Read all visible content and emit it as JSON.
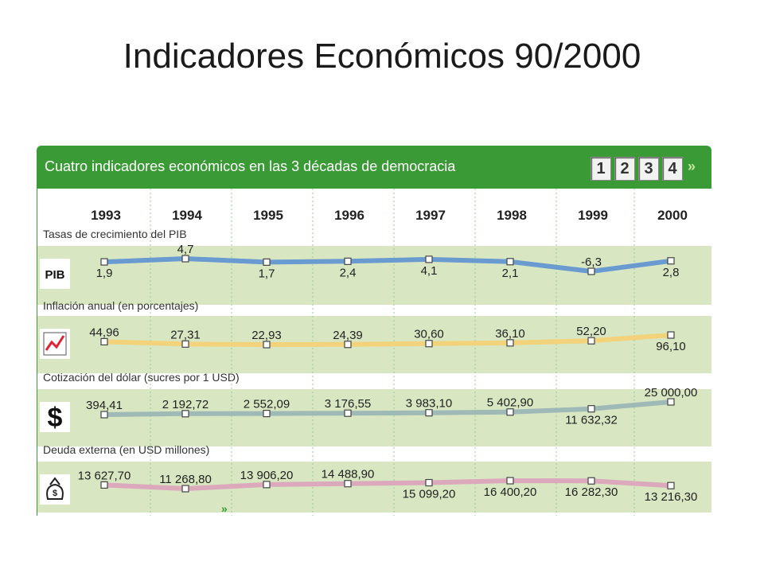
{
  "slide_title": "Indicadores Económicos 90/2000",
  "widget": {
    "title": "Cuatro indicadores económicos en las 3 décadas de democracia",
    "pages": [
      "1",
      "2",
      "3",
      "4"
    ],
    "next_arrow": "»",
    "bottom_arrow": "»"
  },
  "colors": {
    "header_green": "#3a9a36",
    "row_band": "#d8e6c2",
    "pib_line": "#6a9bd0",
    "inflation_line": "#f2d27a",
    "dollar_line": "#9fb9b6",
    "debt_line": "#dba8bc"
  },
  "chart_data": {
    "type": "line",
    "years": [
      "1993",
      "1994",
      "1995",
      "1996",
      "1997",
      "1998",
      "1999",
      "2000"
    ],
    "panels": [
      {
        "label": "Tasas de crecimiento del PIB",
        "icon": "pib-icon",
        "icon_text": "PIB",
        "values": [
          1.9,
          4.7,
          1.7,
          2.4,
          4.1,
          2.1,
          -6.3,
          2.8
        ],
        "labels": [
          "1,9",
          "4,7",
          "1,7",
          "2,4",
          "4,1",
          "2,1",
          "-6,3",
          "2,8"
        ]
      },
      {
        "label": "Inflación anual (en porcentajes)",
        "icon": "chart-up-icon",
        "values": [
          44.96,
          27.31,
          22.93,
          24.39,
          30.6,
          36.1,
          52.2,
          96.1
        ],
        "labels": [
          "44,96",
          "27,31",
          "22,93",
          "24,39",
          "30,60",
          "36,10",
          "52,20",
          "96,10"
        ]
      },
      {
        "label": "Cotización del dólar (sucres por 1 USD)",
        "icon": "dollar-icon",
        "values": [
          394.41,
          2192.72,
          2552.09,
          3176.55,
          3983.1,
          5402.9,
          11632.32,
          25000.0
        ],
        "labels": [
          "394,41",
          "2 192,72",
          "2 552,09",
          "3 176,55",
          "3 983,10",
          "5 402,90",
          "11 632,32",
          "25 000,00"
        ]
      },
      {
        "label": "Deuda externa (en USD millones)",
        "icon": "money-bag-icon",
        "values": [
          13627.7,
          11268.8,
          13906.2,
          14488.9,
          15099.2,
          16400.2,
          16282.3,
          13216.3
        ],
        "labels": [
          "13 627,70",
          "11 268,80",
          "13 906,20",
          "14 488,90",
          "15 099,20",
          "16 400,20",
          "16 282,30",
          "13 216,30"
        ]
      }
    ]
  }
}
